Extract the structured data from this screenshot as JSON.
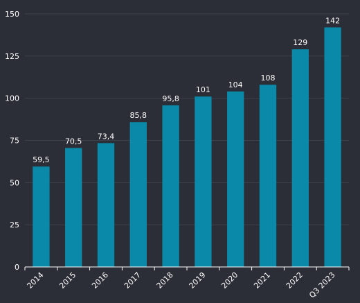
{
  "chart_data": {
    "type": "bar",
    "categories": [
      "2014",
      "2015",
      "2016",
      "2017",
      "2018",
      "2019",
      "2020",
      "2021",
      "2022",
      "Q3 2023"
    ],
    "values": [
      59.5,
      70.5,
      73.4,
      85.8,
      95.8,
      101,
      104,
      108,
      129,
      142
    ],
    "value_labels": [
      "59,5",
      "70,5",
      "73,4",
      "85,8",
      "95,8",
      "101",
      "104",
      "108",
      "129",
      "142"
    ],
    "title": "",
    "xlabel": "",
    "ylabel": "",
    "ylim": [
      0,
      150
    ],
    "yticks": [
      0,
      25,
      50,
      75,
      100,
      125,
      150
    ],
    "grid": true,
    "legend": "none",
    "colors": {
      "bar": "#0a8aa8",
      "background": "#2b2e36",
      "grid": "#3d414b",
      "text": "#ffffff",
      "axis": "#ffffff"
    }
  }
}
